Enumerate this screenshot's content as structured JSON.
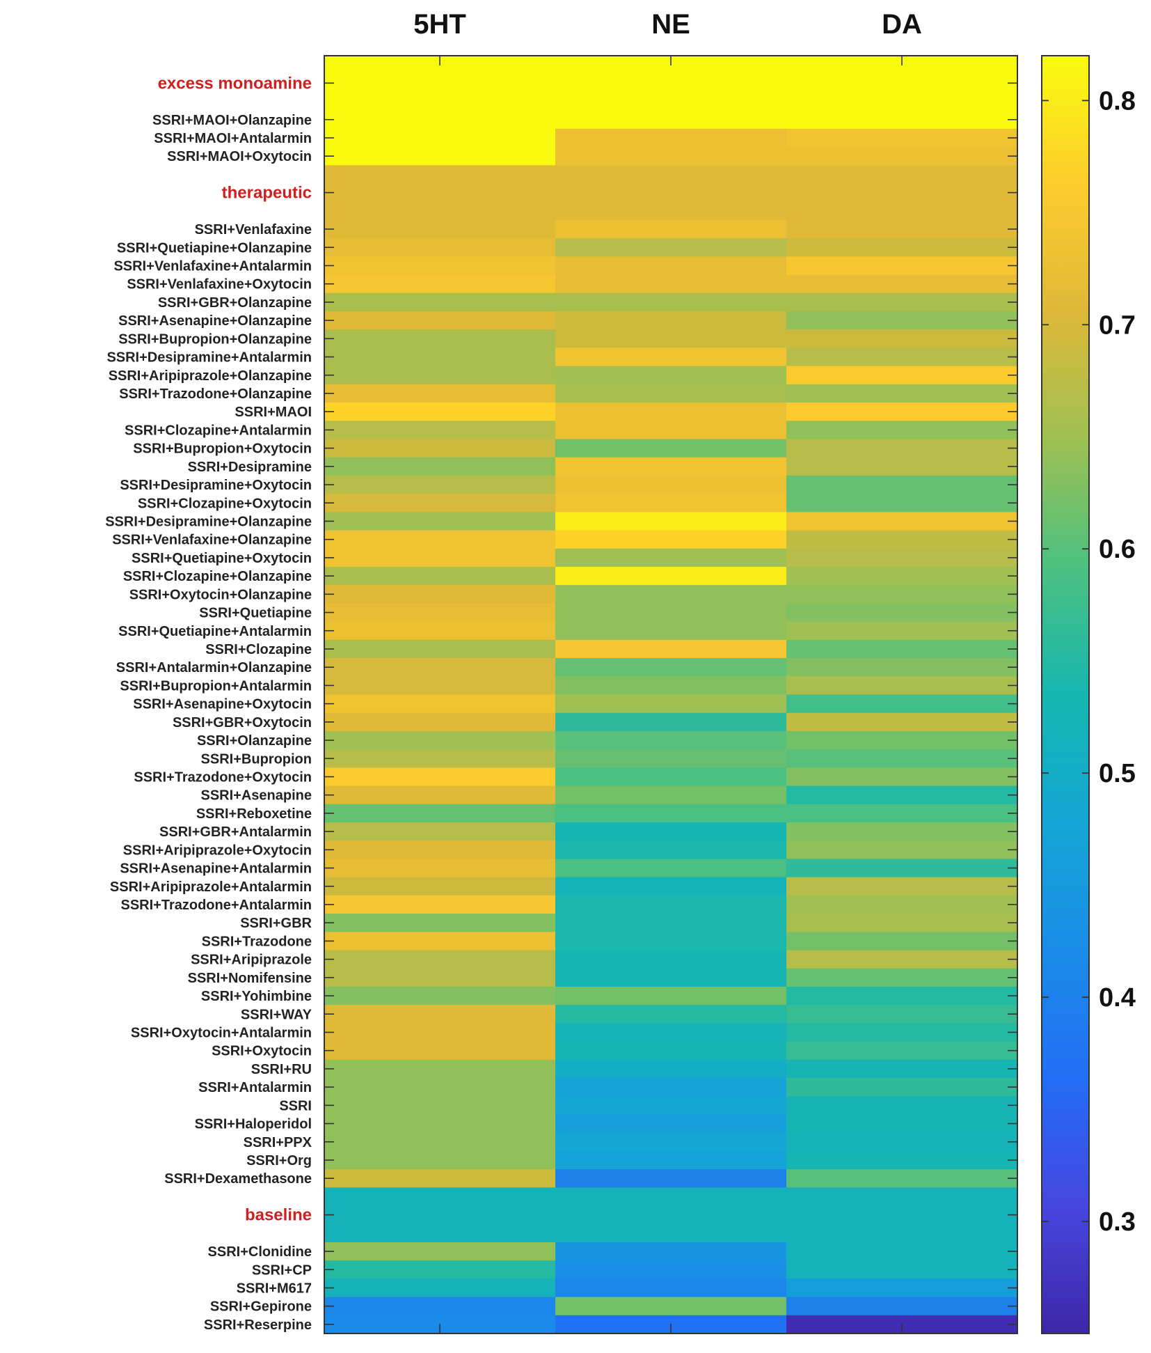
{
  "chart_data": {
    "type": "heatmap",
    "columns": [
      "5HT",
      "NE",
      "DA"
    ],
    "color_scale": {
      "min": 0.25,
      "max": 0.82,
      "ticks": [
        0.3,
        0.4,
        0.5,
        0.6,
        0.7,
        0.8
      ],
      "tick_labels": [
        "0.3",
        "0.4",
        "0.5",
        "0.6",
        "0.7",
        "0.8"
      ],
      "colormap": "parula"
    },
    "rows": [
      {
        "label": "excess monoamine",
        "group": true,
        "height": 3,
        "values": [
          0.82,
          0.82,
          0.82
        ]
      },
      {
        "label": "SSRI+MAOI+Olanzapine",
        "values": [
          0.82,
          0.82,
          0.82
        ]
      },
      {
        "label": "SSRI+MAOI+Antalarmin",
        "values": [
          0.82,
          0.73,
          0.74
        ]
      },
      {
        "label": "SSRI+MAOI+Oxytocin",
        "values": [
          0.82,
          0.73,
          0.73
        ]
      },
      {
        "label": "therapeutic",
        "group": true,
        "height": 3,
        "values": [
          0.71,
          0.71,
          0.71
        ]
      },
      {
        "label": "SSRI+Venlafaxine",
        "values": [
          0.71,
          0.73,
          0.71
        ]
      },
      {
        "label": "SSRI+Quetiapine+Olanzapine",
        "values": [
          0.72,
          0.67,
          0.69
        ]
      },
      {
        "label": "SSRI+Venlafaxine+Antalarmin",
        "values": [
          0.74,
          0.72,
          0.75
        ]
      },
      {
        "label": "SSRI+Venlafaxine+Oxytocin",
        "values": [
          0.75,
          0.72,
          0.72
        ]
      },
      {
        "label": "SSRI+GBR+Olanzapine",
        "values": [
          0.66,
          0.66,
          0.66
        ]
      },
      {
        "label": "SSRI+Asenapine+Olanzapine",
        "values": [
          0.71,
          0.69,
          0.64
        ]
      },
      {
        "label": "SSRI+Bupropion+Olanzapine",
        "values": [
          0.66,
          0.69,
          0.69
        ]
      },
      {
        "label": "SSRI+Desipramine+Antalarmin",
        "values": [
          0.66,
          0.74,
          0.67
        ]
      },
      {
        "label": "SSRI+Aripiprazole+Olanzapine",
        "values": [
          0.66,
          0.65,
          0.76
        ]
      },
      {
        "label": "SSRI+Trazodone+Olanzapine",
        "values": [
          0.72,
          0.66,
          0.65
        ]
      },
      {
        "label": "SSRI+MAOI",
        "values": [
          0.77,
          0.73,
          0.76
        ]
      },
      {
        "label": "SSRI+Clozapine+Antalarmin",
        "values": [
          0.67,
          0.73,
          0.64
        ]
      },
      {
        "label": "SSRI+Bupropion+Oxytocin",
        "values": [
          0.69,
          0.62,
          0.67
        ]
      },
      {
        "label": "SSRI+Desipramine",
        "values": [
          0.64,
          0.74,
          0.67
        ]
      },
      {
        "label": "SSRI+Desipramine+Oxytocin",
        "values": [
          0.67,
          0.73,
          0.61
        ]
      },
      {
        "label": "SSRI+Clozapine+Oxytocin",
        "values": [
          0.7,
          0.74,
          0.61
        ]
      },
      {
        "label": "SSRI+Desipramine+Olanzapine",
        "values": [
          0.65,
          0.8,
          0.74
        ]
      },
      {
        "label": "SSRI+Venlafaxine+Olanzapine",
        "values": [
          0.74,
          0.77,
          0.68
        ]
      },
      {
        "label": "SSRI+Quetiapine+Oxytocin",
        "values": [
          0.74,
          0.65,
          0.67
        ]
      },
      {
        "label": "SSRI+Clozapine+Olanzapine",
        "values": [
          0.66,
          0.8,
          0.65
        ]
      },
      {
        "label": "SSRI+Oxytocin+Olanzapine",
        "values": [
          0.71,
          0.64,
          0.64
        ]
      },
      {
        "label": "SSRI+Quetiapine",
        "values": [
          0.72,
          0.64,
          0.63
        ]
      },
      {
        "label": "SSRI+Quetiapine+Antalarmin",
        "values": [
          0.73,
          0.64,
          0.65
        ]
      },
      {
        "label": "SSRI+Clozapine",
        "values": [
          0.66,
          0.75,
          0.61
        ]
      },
      {
        "label": "SSRI+Antalarmin+Olanzapine",
        "values": [
          0.7,
          0.61,
          0.63
        ]
      },
      {
        "label": "SSRI+Bupropion+Antalarmin",
        "values": [
          0.7,
          0.63,
          0.66
        ]
      },
      {
        "label": "SSRI+Asenapine+Oxytocin",
        "values": [
          0.74,
          0.65,
          0.58
        ]
      },
      {
        "label": "SSRI+GBR+Oxytocin",
        "values": [
          0.71,
          0.56,
          0.68
        ]
      },
      {
        "label": "SSRI+Olanzapine",
        "values": [
          0.65,
          0.6,
          0.62
        ]
      },
      {
        "label": "SSRI+Bupropion",
        "values": [
          0.67,
          0.61,
          0.6
        ]
      },
      {
        "label": "SSRI+Trazodone+Oxytocin",
        "values": [
          0.76,
          0.59,
          0.63
        ]
      },
      {
        "label": "SSRI+Asenapine",
        "values": [
          0.71,
          0.62,
          0.55
        ]
      },
      {
        "label": "SSRI+Reboxetine",
        "values": [
          0.61,
          0.59,
          0.59
        ]
      },
      {
        "label": "SSRI+GBR+Antalarmin",
        "values": [
          0.67,
          0.53,
          0.63
        ]
      },
      {
        "label": "SSRI+Aripiprazole+Oxytocin",
        "values": [
          0.71,
          0.54,
          0.64
        ]
      },
      {
        "label": "SSRI+Asenapine+Antalarmin",
        "values": [
          0.72,
          0.59,
          0.56
        ]
      },
      {
        "label": "SSRI+Aripiprazole+Antalarmin",
        "values": [
          0.69,
          0.52,
          0.67
        ]
      },
      {
        "label": "SSRI+Trazodone+Antalarmin",
        "values": [
          0.75,
          0.54,
          0.65
        ]
      },
      {
        "label": "SSRI+GBR",
        "values": [
          0.63,
          0.54,
          0.66
        ]
      },
      {
        "label": "SSRI+Trazodone",
        "values": [
          0.73,
          0.54,
          0.62
        ]
      },
      {
        "label": "SSRI+Aripiprazole",
        "values": [
          0.67,
          0.53,
          0.67
        ]
      },
      {
        "label": "SSRI+Nomifensine",
        "values": [
          0.67,
          0.53,
          0.61
        ]
      },
      {
        "label": "SSRI+Yohimbine",
        "values": [
          0.63,
          0.62,
          0.55
        ]
      },
      {
        "label": "SSRI+WAY",
        "values": [
          0.71,
          0.55,
          0.57
        ]
      },
      {
        "label": "SSRI+Oxytocin+Antalarmin",
        "values": [
          0.71,
          0.52,
          0.55
        ]
      },
      {
        "label": "SSRI+Oxytocin",
        "values": [
          0.71,
          0.53,
          0.57
        ]
      },
      {
        "label": "SSRI+RU",
        "values": [
          0.64,
          0.5,
          0.53
        ]
      },
      {
        "label": "SSRI+Antalarmin",
        "values": [
          0.64,
          0.47,
          0.56
        ]
      },
      {
        "label": "SSRI",
        "values": [
          0.64,
          0.48,
          0.53
        ]
      },
      {
        "label": "SSRI+Haloperidol",
        "values": [
          0.64,
          0.46,
          0.53
        ]
      },
      {
        "label": "SSRI+PPX",
        "values": [
          0.64,
          0.48,
          0.52
        ]
      },
      {
        "label": "SSRI+Org",
        "values": [
          0.64,
          0.47,
          0.53
        ]
      },
      {
        "label": "SSRI+Dexamethasone",
        "values": [
          0.69,
          0.4,
          0.6
        ]
      },
      {
        "label": "baseline",
        "group": true,
        "height": 3,
        "values": [
          0.52,
          0.52,
          0.52
        ]
      },
      {
        "label": "SSRI+Clonidine",
        "values": [
          0.64,
          0.44,
          0.52
        ]
      },
      {
        "label": "SSRI+CP",
        "values": [
          0.55,
          0.43,
          0.52
        ]
      },
      {
        "label": "SSRI+M617",
        "values": [
          0.52,
          0.41,
          0.46
        ]
      },
      {
        "label": "SSRI+Gepirone",
        "values": [
          0.41,
          0.62,
          0.4
        ]
      },
      {
        "label": "SSRI+Reserpine",
        "values": [
          0.42,
          0.37,
          0.26
        ]
      }
    ]
  }
}
